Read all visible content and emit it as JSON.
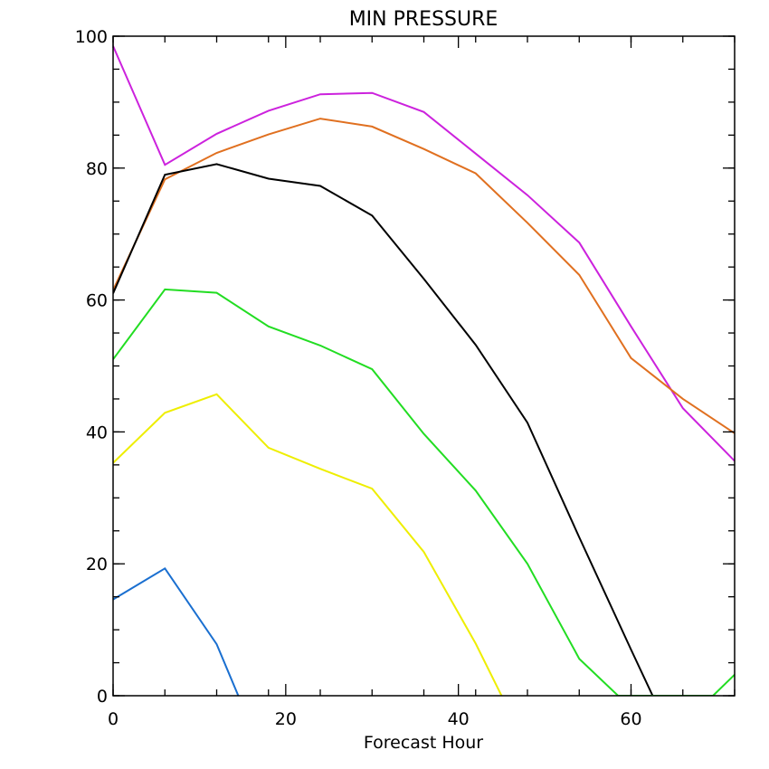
{
  "chart_data": {
    "type": "line",
    "title": "MIN PRESSURE",
    "xlabel": "Forecast Hour",
    "ylabel": "",
    "xlim": [
      0,
      72
    ],
    "ylim": [
      0,
      100
    ],
    "x_ticks": [
      0,
      20,
      40,
      60
    ],
    "y_ticks": [
      0,
      20,
      40,
      60,
      80,
      100
    ],
    "x_minor_step": 6,
    "y_minor_step": 5,
    "x_tick_labels": [
      "0",
      "20",
      "40",
      "60"
    ],
    "y_tick_labels": [
      "0",
      "20",
      "40",
      "60",
      "80",
      "100"
    ],
    "grid": false,
    "series": [
      {
        "color": "#cc22dd",
        "points": [
          [
            0,
            98.5
          ],
          [
            6,
            80.5
          ],
          [
            12,
            85.2
          ],
          [
            18,
            88.7
          ],
          [
            24,
            91.2
          ],
          [
            30,
            91.4
          ],
          [
            36,
            88.5
          ],
          [
            42,
            82.2
          ],
          [
            48,
            75.9
          ],
          [
            54,
            68.7
          ],
          [
            60,
            56.0
          ],
          [
            66,
            43.6
          ],
          [
            72,
            35.6
          ]
        ]
      },
      {
        "color": "#e07020",
        "points": [
          [
            0,
            61.5
          ],
          [
            6,
            78.3
          ],
          [
            12,
            82.3
          ],
          [
            18,
            85.1
          ],
          [
            24,
            87.5
          ],
          [
            30,
            86.3
          ],
          [
            36,
            82.9
          ],
          [
            42,
            79.2
          ],
          [
            48,
            71.7
          ],
          [
            54,
            63.8
          ],
          [
            60,
            51.2
          ],
          [
            66,
            45.0
          ],
          [
            72,
            39.8
          ]
        ]
      },
      {
        "color": "#000000",
        "points": [
          [
            0,
            61.0
          ],
          [
            6,
            79.0
          ],
          [
            12,
            80.6
          ],
          [
            18,
            78.4
          ],
          [
            24,
            77.3
          ],
          [
            30,
            72.8
          ],
          [
            36,
            63.2
          ],
          [
            42,
            53.2
          ],
          [
            48,
            41.4
          ],
          [
            54,
            24.0
          ],
          [
            60,
            7.0
          ],
          [
            62.5,
            0
          ]
        ]
      },
      {
        "color": "#22dd22",
        "points": [
          [
            0,
            51.0
          ],
          [
            6,
            61.6
          ],
          [
            12,
            61.1
          ],
          [
            18,
            56.0
          ],
          [
            24,
            53.1
          ],
          [
            30,
            49.5
          ],
          [
            36,
            39.7
          ],
          [
            42,
            31.1
          ],
          [
            48,
            20.0
          ],
          [
            54,
            5.6
          ],
          [
            58.5,
            0
          ],
          [
            69.5,
            0
          ],
          [
            72,
            3.2
          ]
        ]
      },
      {
        "color": "#eeee00",
        "points": [
          [
            0,
            35.3
          ],
          [
            6,
            42.9
          ],
          [
            12,
            45.7
          ],
          [
            18,
            37.6
          ],
          [
            24,
            34.4
          ],
          [
            30,
            31.4
          ],
          [
            36,
            21.8
          ],
          [
            42,
            7.9
          ],
          [
            45,
            0
          ]
        ]
      },
      {
        "color": "#1a6fd0",
        "points": [
          [
            0,
            14.6
          ],
          [
            6,
            19.3
          ],
          [
            12,
            7.8
          ],
          [
            14.5,
            0
          ]
        ]
      }
    ]
  }
}
